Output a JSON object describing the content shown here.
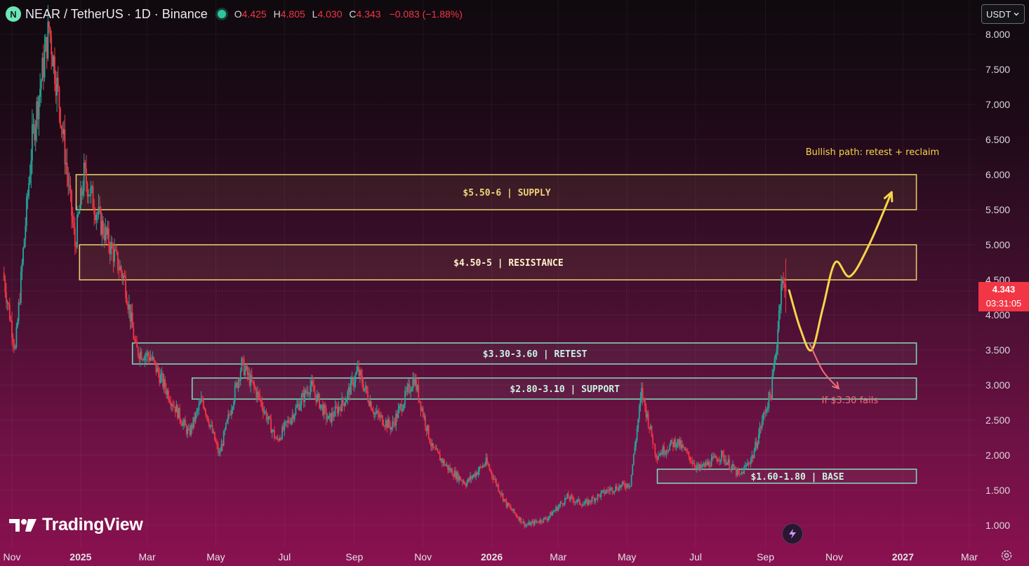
{
  "header": {
    "symbol": "NEAR / TetherUS · 1D · Binance",
    "logo_letter": "N",
    "o_label": "O",
    "o": "4.425",
    "h_label": "H",
    "h": "4.805",
    "l_label": "L",
    "l": "4.030",
    "c_label": "C",
    "c": "4.343",
    "change": "−0.083 (−1.88%)"
  },
  "currency_selector": {
    "value": "USDT",
    "icon": "chevron-down-icon"
  },
  "price_label": {
    "price": "4.343",
    "countdown": "03:31:05"
  },
  "branding": {
    "name": "TradingView"
  },
  "colors": {
    "up": "#26a69a",
    "down": "#f23645",
    "supply_zone": "#e6c76a",
    "support_zone": "#7fd3b8",
    "bullish_path": "#f5d54a",
    "bearish_path": "#f0707a"
  },
  "chart_data": {
    "type": "candlestick",
    "symbol": "NEAR/USDT",
    "interval": "1D",
    "ylim": [
      0.75,
      8.25
    ],
    "y_ticks": [
      "8.000",
      "7.500",
      "7.000",
      "6.500",
      "6.000",
      "5.500",
      "5.000",
      "4.500",
      "4.000",
      "3.500",
      "3.000",
      "2.500",
      "2.000",
      "1.500",
      "1.000"
    ],
    "x_ticks": [
      {
        "label": "Nov",
        "date": "2024-11-01"
      },
      {
        "label": "2025",
        "date": "2025-01-01",
        "bold": true
      },
      {
        "label": "Mar",
        "date": "2025-03-01"
      },
      {
        "label": "May",
        "date": "2025-05-01"
      },
      {
        "label": "Jul",
        "date": "2025-07-01"
      },
      {
        "label": "Sep",
        "date": "2025-09-01"
      },
      {
        "label": "Nov",
        "date": "2025-11-01"
      },
      {
        "label": "2026",
        "date": "2026-01-01",
        "bold": true
      },
      {
        "label": "Mar",
        "date": "2026-03-01"
      },
      {
        "label": "May",
        "date": "2026-05-01"
      },
      {
        "label": "Jul",
        "date": "2026-07-01"
      },
      {
        "label": "Sep",
        "date": "2026-09-01"
      },
      {
        "label": "Nov",
        "date": "2026-11-01"
      },
      {
        "label": "2027",
        "date": "2027-01-01",
        "bold": true
      },
      {
        "label": "Mar",
        "date": "2027-03-01"
      }
    ],
    "price_path": [
      [
        "2024-10-25",
        4.6
      ],
      [
        "2024-11-05",
        3.5
      ],
      [
        "2024-11-20",
        6.5
      ],
      [
        "2024-12-05",
        8.1
      ],
      [
        "2024-12-15",
        6.9
      ],
      [
        "2024-12-28",
        5.0
      ],
      [
        "2025-01-05",
        6.0
      ],
      [
        "2025-01-20",
        5.3
      ],
      [
        "2025-02-10",
        4.5
      ],
      [
        "2025-02-20",
        3.5
      ],
      [
        "2025-03-05",
        3.4
      ],
      [
        "2025-03-20",
        2.9
      ],
      [
        "2025-04-08",
        2.3
      ],
      [
        "2025-04-20",
        2.8
      ],
      [
        "2025-05-05",
        2.0
      ],
      [
        "2025-05-25",
        3.3
      ],
      [
        "2025-06-10",
        2.8
      ],
      [
        "2025-06-25",
        2.2
      ],
      [
        "2025-07-10",
        2.6
      ],
      [
        "2025-07-25",
        3.0
      ],
      [
        "2025-08-10",
        2.5
      ],
      [
        "2025-08-25",
        2.8
      ],
      [
        "2025-09-05",
        3.2
      ],
      [
        "2025-09-20",
        2.6
      ],
      [
        "2025-10-05",
        2.4
      ],
      [
        "2025-10-25",
        3.1
      ],
      [
        "2025-11-10",
        2.1
      ],
      [
        "2025-11-25",
        1.8
      ],
      [
        "2025-12-10",
        1.6
      ],
      [
        "2025-12-28",
        1.9
      ],
      [
        "2026-01-15",
        1.3
      ],
      [
        "2026-02-01",
        1.0
      ],
      [
        "2026-02-20",
        1.1
      ],
      [
        "2026-03-10",
        1.4
      ],
      [
        "2026-03-25",
        1.3
      ],
      [
        "2026-04-15",
        1.5
      ],
      [
        "2026-05-05",
        1.6
      ],
      [
        "2026-05-15",
        2.9
      ],
      [
        "2026-05-28",
        2.0
      ],
      [
        "2026-06-15",
        2.2
      ],
      [
        "2026-07-05",
        1.8
      ],
      [
        "2026-07-25",
        2.0
      ],
      [
        "2026-08-10",
        1.7
      ],
      [
        "2026-08-22",
        2.0
      ],
      [
        "2026-09-01",
        2.6
      ],
      [
        "2026-09-07",
        2.9
      ],
      [
        "2026-09-12",
        3.6
      ],
      [
        "2026-09-16",
        4.5
      ],
      [
        "2026-09-19",
        4.343
      ]
    ],
    "last": {
      "o": 4.425,
      "h": 4.805,
      "l": 4.03,
      "c": 4.343
    },
    "zones": [
      {
        "label": "$5.50-6 | SUPPLY",
        "low": 5.5,
        "high": 6.0,
        "from": "2024-12-28",
        "style": "supply"
      },
      {
        "label": "$4.50-5 | RESISTANCE",
        "low": 4.5,
        "high": 5.0,
        "from": "2024-12-31",
        "style": "supply"
      },
      {
        "label": "$3.30-3.60 | RETEST",
        "low": 3.3,
        "high": 3.6,
        "from": "2025-02-16",
        "style": "support"
      },
      {
        "label": "$2.80-3.10 | SUPPORT",
        "low": 2.8,
        "high": 3.1,
        "from": "2025-04-10",
        "style": "support"
      },
      {
        "label": "$1.60-1.80 | BASE",
        "low": 1.6,
        "high": 1.8,
        "from": "2026-05-28",
        "style": "support"
      }
    ],
    "zones_end": "2027-01-13",
    "annotations": [
      {
        "text": "Bullish path: retest + reclaim",
        "x": "2026-12-05",
        "y": 6.28
      },
      {
        "text": "If $3.30 fails",
        "x": "2026-11-15",
        "y": 2.74
      }
    ],
    "bullish_path": [
      [
        "2026-09-22",
        4.35
      ],
      [
        "2026-10-02",
        3.8
      ],
      [
        "2026-10-12",
        3.5
      ],
      [
        "2026-10-22",
        4.1
      ],
      [
        "2026-11-02",
        4.75
      ],
      [
        "2026-11-15",
        4.55
      ],
      [
        "2026-12-02",
        5.0
      ],
      [
        "2026-12-22",
        5.75
      ]
    ],
    "bearish_path": [
      [
        "2026-10-10",
        3.6
      ],
      [
        "2026-10-22",
        3.2
      ],
      [
        "2026-11-05",
        2.95
      ]
    ],
    "last_price": 4.343
  }
}
